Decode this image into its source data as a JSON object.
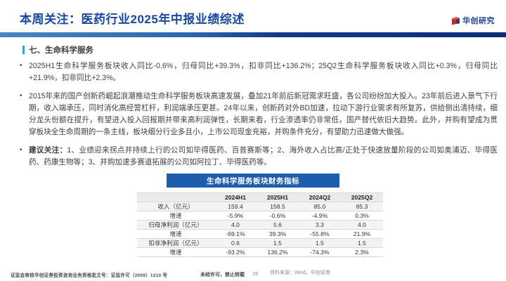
{
  "header": {
    "title": "本周关注：医药行业2025年中报业绩综述",
    "logo_text": "华创研究",
    "accent_color": "#17479e",
    "bar_gradient": [
      "#4a86c4",
      "#0b2d78"
    ]
  },
  "section": {
    "heading": "七、生命科学服务",
    "marker_color": "#35a0d8"
  },
  "bullets": [
    {
      "lead": "",
      "text": "2025H1生命科学服务板块收入同比-0.6%，归母同比+39.3%，扣非同比+136.2%；25Q2生命科学服务板块收入同比+0.3%，归母同比+21.9%，扣非同比+2.3%。"
    },
    {
      "lead": "",
      "text": "2015年来的国产创新药崛起浪潮推动生命科学服务板块高速发展，叠加21年前后新冠需求旺盛，各公司纷纷加大投入。23年前后进入景气下行期，收入端承压，同时消化高经营杠杆，利润端承压更甚。24年以来，创新药对外BD加速，拉动下游行业需求有所复苏，供给侧出清持续，细分龙头份额在提升，有望进入投入回报期并带来高利润弹性，长期来看，行业渗透率仍非常低，国产替代依旧大趋势。此外，并购有望成为贯穿板块全生命周期的一条主线，板块细分行业多且小，上市公司现金充裕，并购条件充分，有望助力迅速做大做强。"
    },
    {
      "lead": "建议关注：",
      "text": "1、业绩迎来拐点并持续上行的公司如毕得医药、百普赛斯等；2、海外收入占比高/正处于快速放量阶段的公司如奥浦迈、毕得医药、药康生物等；3、并购加速多赛道拓展的公司如阿拉丁、毕得医药等。"
    }
  ],
  "table": {
    "title": "生命科学服务板块财务指标",
    "title_bg": "#1e5cae",
    "columns": [
      "",
      "2024H1",
      "2025H1",
      "2024Q2",
      "2025Q2"
    ],
    "rows": [
      {
        "label": "收入（亿元）",
        "kind": "metric",
        "values": [
          "159.4",
          "158.5",
          "85.0",
          "85.3"
        ]
      },
      {
        "label": "增速",
        "kind": "growth",
        "values": [
          "-5.9%",
          "-0.6%",
          "-4.9%",
          "0.3%"
        ]
      },
      {
        "label": "归母净利润（亿元）",
        "kind": "metric",
        "values": [
          "4.0",
          "5.6",
          "3.3",
          "4.0"
        ]
      },
      {
        "label": "增速",
        "kind": "growth",
        "values": [
          "-69.1%",
          "39.3%",
          "-55.8%",
          "21.9%"
        ]
      },
      {
        "label": "扣非净利润（亿元）",
        "kind": "metric",
        "values": [
          "0.6",
          "1.5",
          "1.5",
          "1.5"
        ]
      },
      {
        "label": "增速",
        "kind": "growth",
        "values": [
          "-93.2%",
          "136.2%",
          "-74.3%",
          "2.3%"
        ]
      }
    ]
  },
  "chart_data": {
    "type": "table",
    "title": "生命科学服务板块财务指标",
    "categories": [
      "2024H1",
      "2025H1",
      "2024Q2",
      "2025Q2"
    ],
    "series": [
      {
        "name": "收入（亿元）",
        "values": [
          159.4,
          158.5,
          85.0,
          85.3
        ]
      },
      {
        "name": "收入增速",
        "values": [
          "-5.9%",
          "-0.6%",
          "-4.9%",
          "0.3%"
        ]
      },
      {
        "name": "归母净利润（亿元）",
        "values": [
          4.0,
          5.6,
          3.3,
          4.0
        ]
      },
      {
        "name": "归母净利润增速",
        "values": [
          "-69.1%",
          "39.3%",
          "-55.8%",
          "21.9%"
        ]
      },
      {
        "name": "扣非净利润（亿元）",
        "values": [
          0.6,
          1.5,
          1.5,
          1.5
        ]
      },
      {
        "name": "扣非净利润增速",
        "values": [
          "-93.2%",
          "136.2%",
          "-74.3%",
          "2.3%"
        ]
      }
    ]
  },
  "footer": {
    "regulatory": "证监会审核华创证券投资咨询业务资格批文号：证监许可（2009）1210 号",
    "no_reproduce": "未经许可，禁止转载",
    "page_number": "28",
    "source": "资料来源：Wind，华创证券"
  }
}
